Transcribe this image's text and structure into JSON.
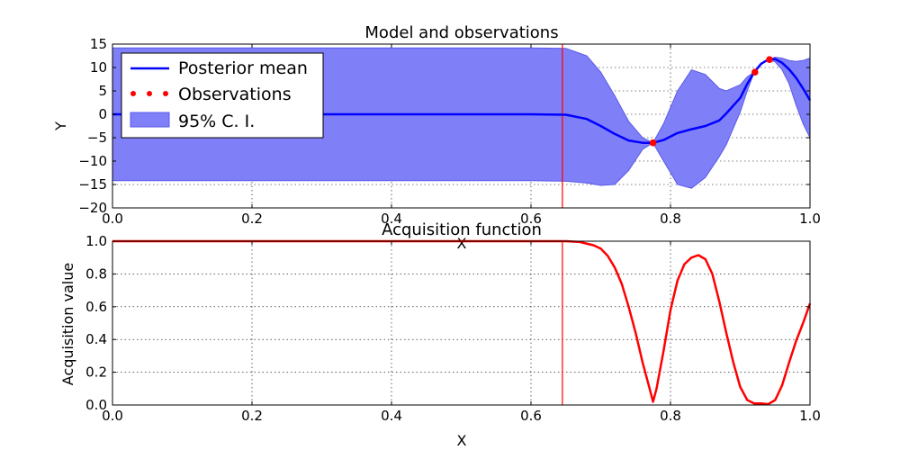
{
  "chart_data": [
    {
      "type": "line",
      "title": "Model and observations",
      "xlabel": "X",
      "ylabel": "Y",
      "xlim": [
        0.0,
        1.0
      ],
      "ylim": [
        -20,
        15
      ],
      "xticks": [
        "0.0",
        "0.2",
        "0.4",
        "0.6",
        "0.8",
        "1.0"
      ],
      "yticks": [
        "−20",
        "−15",
        "−10",
        "−5",
        "0",
        "5",
        "10",
        "15"
      ],
      "grid": true,
      "legend_position": "top-left",
      "colors": {
        "mean": "#0000ff",
        "band": "#7f7ff8",
        "band_edge": "#5a5ae8",
        "observations": "#ff0000",
        "vline": "#ff0000"
      },
      "series": [
        {
          "name": "Posterior mean",
          "x": [
            0.0,
            0.1,
            0.2,
            0.3,
            0.4,
            0.5,
            0.6,
            0.65,
            0.68,
            0.7,
            0.72,
            0.74,
            0.76,
            0.775,
            0.79,
            0.81,
            0.83,
            0.85,
            0.87,
            0.88,
            0.9,
            0.91,
            0.92,
            0.93,
            0.94,
            0.95,
            0.96,
            0.97,
            0.98,
            0.99,
            1.0
          ],
          "y": [
            0,
            0,
            0,
            0,
            0,
            0,
            0,
            -0.1,
            -1.0,
            -2.5,
            -4.2,
            -5.6,
            -6.1,
            -6.1,
            -5.5,
            -4.0,
            -3.2,
            -2.5,
            -1.3,
            0.2,
            3.5,
            6.5,
            9.0,
            10.8,
            11.7,
            11.8,
            11.0,
            9.6,
            7.8,
            5.5,
            3.0
          ]
        },
        {
          "name": "95% C. I.",
          "x": [
            0.0,
            0.1,
            0.2,
            0.3,
            0.4,
            0.5,
            0.6,
            0.65,
            0.68,
            0.7,
            0.72,
            0.74,
            0.76,
            0.775,
            0.79,
            0.81,
            0.83,
            0.85,
            0.87,
            0.88,
            0.9,
            0.91,
            0.92,
            0.93,
            0.94,
            0.95,
            0.96,
            0.97,
            0.98,
            0.99,
            1.0
          ],
          "upper": [
            14.2,
            14.2,
            14.2,
            14.2,
            14.2,
            14.2,
            14.2,
            14.1,
            12.5,
            9.0,
            4.0,
            -1.5,
            -5.0,
            -6.1,
            -2.0,
            5.0,
            9.5,
            8.5,
            5.5,
            5.0,
            6.3,
            8.0,
            9.0,
            10.8,
            11.7,
            12.2,
            12.0,
            11.5,
            11.3,
            11.5,
            12.0
          ],
          "lower": [
            -14.2,
            -14.2,
            -14.2,
            -14.2,
            -14.2,
            -14.2,
            -14.2,
            -14.3,
            -14.7,
            -15.2,
            -15.0,
            -12.0,
            -7.5,
            -6.1,
            -10.0,
            -15.0,
            -15.8,
            -13.5,
            -9.0,
            -6.5,
            0.5,
            5.0,
            9.0,
            10.8,
            11.7,
            11.2,
            9.5,
            6.5,
            2.0,
            -2.0,
            -5.0
          ]
        },
        {
          "name": "Observations",
          "x": [
            0.775,
            0.921,
            0.942
          ],
          "y": [
            -6.1,
            9.0,
            11.7
          ]
        }
      ],
      "vline_x": 0.645
    },
    {
      "type": "line",
      "title": "Acquisition function",
      "xlabel": "X",
      "ylabel": "Acquisition value",
      "xlim": [
        0.0,
        1.0
      ],
      "ylim": [
        0.0,
        1.0
      ],
      "xticks": [
        "0.0",
        "0.2",
        "0.4",
        "0.6",
        "0.8",
        "1.0"
      ],
      "yticks": [
        "0.0",
        "0.2",
        "0.4",
        "0.6",
        "0.8",
        "1.0"
      ],
      "grid": true,
      "colors": {
        "curve": "#ff0000",
        "vline": "#ff0000"
      },
      "series": [
        {
          "x": [
            0.0,
            0.1,
            0.2,
            0.3,
            0.4,
            0.5,
            0.6,
            0.65,
            0.67,
            0.69,
            0.7,
            0.71,
            0.72,
            0.73,
            0.74,
            0.75,
            0.76,
            0.77,
            0.775,
            0.78,
            0.79,
            0.8,
            0.81,
            0.82,
            0.83,
            0.84,
            0.85,
            0.86,
            0.87,
            0.88,
            0.89,
            0.9,
            0.91,
            0.92,
            0.93,
            0.94,
            0.95,
            0.96,
            0.97,
            0.98,
            0.99,
            1.0
          ],
          "y": [
            1.0,
            1.0,
            1.0,
            1.0,
            1.0,
            1.0,
            1.0,
            1.0,
            0.995,
            0.975,
            0.955,
            0.91,
            0.84,
            0.74,
            0.6,
            0.44,
            0.26,
            0.1,
            0.02,
            0.1,
            0.33,
            0.58,
            0.76,
            0.86,
            0.9,
            0.915,
            0.89,
            0.8,
            0.63,
            0.44,
            0.26,
            0.11,
            0.03,
            0.01,
            0.01,
            0.005,
            0.03,
            0.12,
            0.26,
            0.39,
            0.5,
            0.62
          ]
        }
      ],
      "vline_x": 0.645
    }
  ]
}
